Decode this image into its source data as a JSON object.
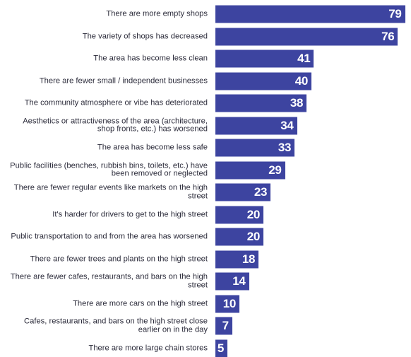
{
  "chart_data": {
    "type": "bar",
    "orientation": "horizontal",
    "categories": [
      "There are more empty shops",
      "The variety of shops has decreased",
      "The area has become less clean",
      "There are fewer small / independent businesses",
      "The community atmosphere or vibe has deteriorated",
      "Aesthetics or attractiveness of the area (architecture, shop fronts, etc.) has worsened",
      "The area has become less safe",
      "Public facilities (benches, rubbish bins, toilets, etc.) have been removed or neglected",
      "There are fewer regular events like markets on the high street",
      "It's harder for drivers to get to the high street",
      "Public transportation to and from the area has worsened",
      "There are fewer trees and plants on the high street",
      "There are fewer cafes, restaurants, and bars on the high street",
      "There are more cars on the high street",
      "Cafes, restaurants, and bars on the high street close earlier on in the day",
      "There are more large chain stores"
    ],
    "values": [
      79,
      76,
      41,
      40,
      38,
      34,
      33,
      29,
      23,
      20,
      20,
      18,
      14,
      10,
      7,
      5
    ],
    "bar_color": "#3d44a0",
    "value_label_color": "#ffffff",
    "xlim": [
      0,
      80
    ]
  }
}
